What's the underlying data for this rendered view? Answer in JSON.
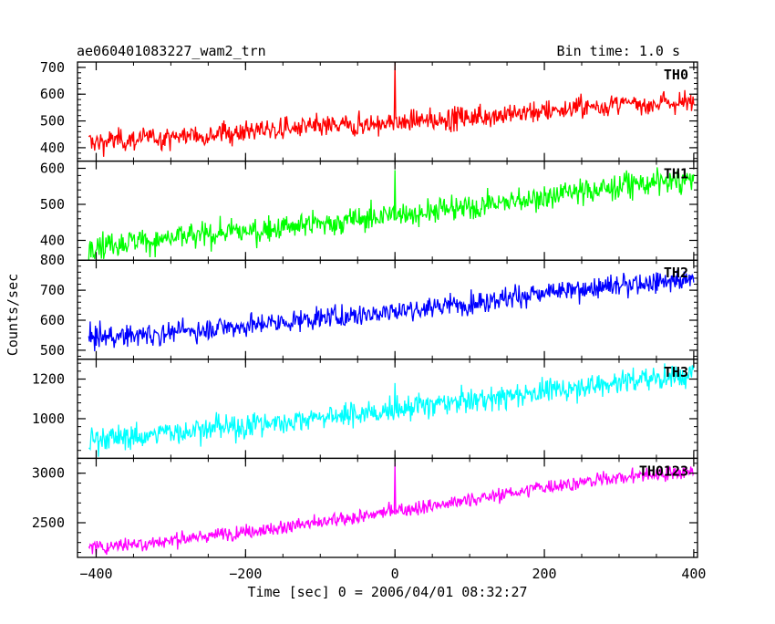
{
  "header": {
    "title": "ae060401083227_wam2_trn",
    "bin_time": "Bin time: 1.0 s"
  },
  "chart_data": {
    "type": "line",
    "title": "ae060401083227_wam2_trn",
    "subtitle": "Bin time: 1.0 s",
    "xlabel": "Time [sec] 0 = 2006/04/01 08:32:27",
    "ylabel": "Counts/sec",
    "xlim": [
      -425,
      405
    ],
    "x_ticks": [
      -400,
      -200,
      0,
      200,
      400
    ],
    "x_tick_labels": [
      "−400",
      "−200",
      "0",
      "200",
      "400"
    ],
    "grid": false,
    "panels": [
      {
        "name": "TH0",
        "color": "#ff0000",
        "ylim": [
          350,
          720
        ],
        "y_ticks": [
          400,
          500,
          600,
          700
        ],
        "y_tick_labels": [
          "400",
          "500",
          "600",
          "700"
        ],
        "trend": [
          [
            -410,
            420
          ],
          [
            -300,
            440
          ],
          [
            -200,
            462
          ],
          [
            -100,
            478
          ],
          [
            0,
            492
          ],
          [
            100,
            515
          ],
          [
            200,
            538
          ],
          [
            300,
            560
          ],
          [
            400,
            572
          ]
        ],
        "noise": 40,
        "spike": {
          "x": 0,
          "y": 720
        }
      },
      {
        "name": "TH1",
        "color": "#00ff00",
        "ylim": [
          345,
          620
        ],
        "y_ticks": [
          400,
          500,
          600
        ],
        "y_tick_labels": [
          "400",
          "500",
          "600"
        ],
        "trend": [
          [
            -410,
            385
          ],
          [
            -300,
            405
          ],
          [
            -200,
            425
          ],
          [
            -100,
            445
          ],
          [
            0,
            470
          ],
          [
            100,
            492
          ],
          [
            200,
            520
          ],
          [
            300,
            550
          ],
          [
            400,
            570
          ]
        ],
        "noise": 35,
        "spike": {
          "x": 0,
          "y": 595
        }
      },
      {
        "name": "TH2",
        "color": "#0000ff",
        "ylim": [
          470,
          800
        ],
        "y_ticks": [
          500,
          600,
          700,
          800
        ],
        "y_tick_labels": [
          "500",
          "600",
          "700",
          "800"
        ],
        "trend": [
          [
            -410,
            540
          ],
          [
            -300,
            558
          ],
          [
            -200,
            582
          ],
          [
            -100,
            605
          ],
          [
            0,
            630
          ],
          [
            100,
            658
          ],
          [
            200,
            690
          ],
          [
            300,
            715
          ],
          [
            400,
            735
          ]
        ],
        "noise": 35,
        "spike": null
      },
      {
        "name": "TH3",
        "color": "#00ffff",
        "ylim": [
          800,
          1300
        ],
        "y_ticks": [
          1000,
          1200
        ],
        "y_tick_labels": [
          "1000",
          "1200"
        ],
        "trend": [
          [
            -410,
            890
          ],
          [
            -300,
            930
          ],
          [
            -200,
            965
          ],
          [
            -100,
            1005
          ],
          [
            0,
            1045
          ],
          [
            100,
            1090
          ],
          [
            200,
            1140
          ],
          [
            300,
            1185
          ],
          [
            400,
            1225
          ]
        ],
        "noise": 60,
        "spike": {
          "x": 0,
          "y": 1180
        }
      },
      {
        "name": "TH0123",
        "color": "#ff00ff",
        "ylim": [
          2150,
          3150
        ],
        "y_ticks": [
          2500,
          3000
        ],
        "y_tick_labels": [
          "2500",
          "3000"
        ],
        "trend": [
          [
            -410,
            2250
          ],
          [
            -300,
            2320
          ],
          [
            -200,
            2410
          ],
          [
            -100,
            2500
          ],
          [
            0,
            2620
          ],
          [
            100,
            2730
          ],
          [
            200,
            2860
          ],
          [
            300,
            2960
          ],
          [
            400,
            3020
          ]
        ],
        "noise": 70,
        "spike": {
          "x": 0,
          "y": 3110
        }
      }
    ]
  }
}
